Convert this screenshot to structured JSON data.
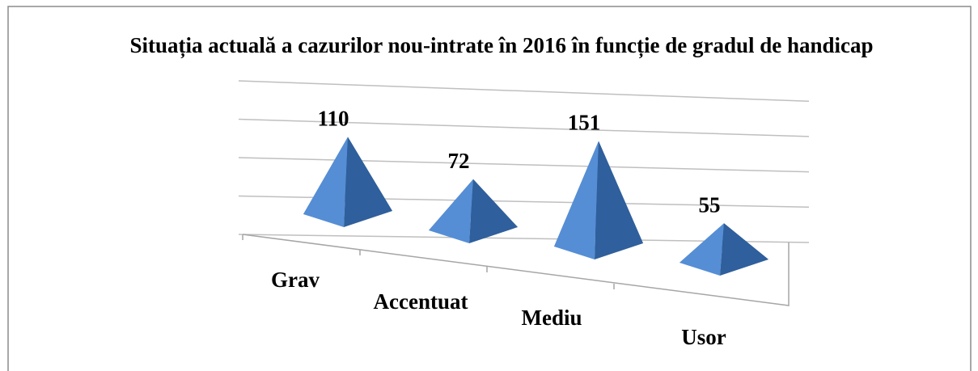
{
  "chart_data": {
    "type": "pyramid",
    "title": "Situația actuală  a cazurilor nou-intrate în 2016  în funcție de gradul de handicap",
    "categories": [
      "Grav",
      "Accentuat",
      "Mediu",
      "Usor"
    ],
    "values": [
      110,
      72,
      151,
      55
    ],
    "color": "#558ed5",
    "ylim": [
      0,
      200
    ],
    "yticks": [
      0,
      50,
      100,
      150,
      200
    ],
    "grid": true
  }
}
